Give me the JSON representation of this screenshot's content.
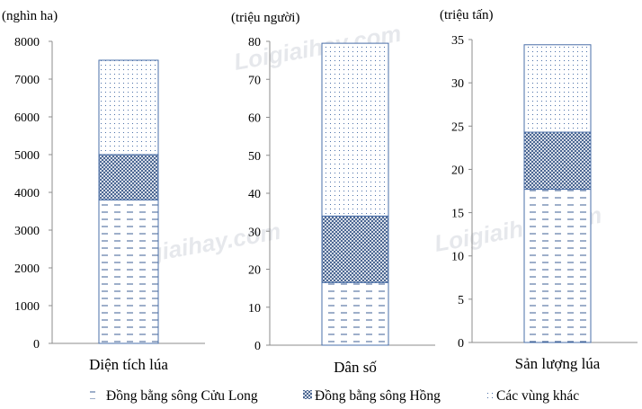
{
  "chart_data": [
    {
      "type": "bar",
      "stacked": true,
      "unit_label": "(nghìn ha)",
      "category": "Diện tích lúa",
      "ylim": [
        0,
        8000
      ],
      "ticks": [
        0,
        1000,
        2000,
        3000,
        4000,
        5000,
        6000,
        7000,
        8000
      ],
      "values": [
        3800,
        1200,
        2500
      ]
    },
    {
      "type": "bar",
      "stacked": true,
      "unit_label": "(triệu người)",
      "category": "Dân số",
      "ylim": [
        0,
        80
      ],
      "ticks": [
        0,
        10,
        20,
        30,
        40,
        50,
        60,
        70,
        80
      ],
      "values": [
        16.5,
        17.5,
        45.5
      ]
    },
    {
      "type": "bar",
      "stacked": true,
      "unit_label": "(triệu tấn)",
      "category": "Sản lượng lúa",
      "ylim": [
        0,
        35
      ],
      "ticks": [
        0,
        5,
        10,
        15,
        20,
        25,
        30,
        35
      ],
      "values": [
        17.7,
        6.6,
        10.1
      ]
    }
  ],
  "legend": [
    {
      "name": "Đồng bằng sông Cửu Long",
      "pattern": "dash"
    },
    {
      "name": "Đồng bằng sông Hồng",
      "pattern": "cross"
    },
    {
      "name": "Các vùng khác",
      "pattern": "dots"
    }
  ],
  "watermark": "Loigiaihay.com",
  "colors": {
    "bar_stroke": "#4a6fa8",
    "pattern": "#3d5f95",
    "axis": "#8c8c8c"
  }
}
